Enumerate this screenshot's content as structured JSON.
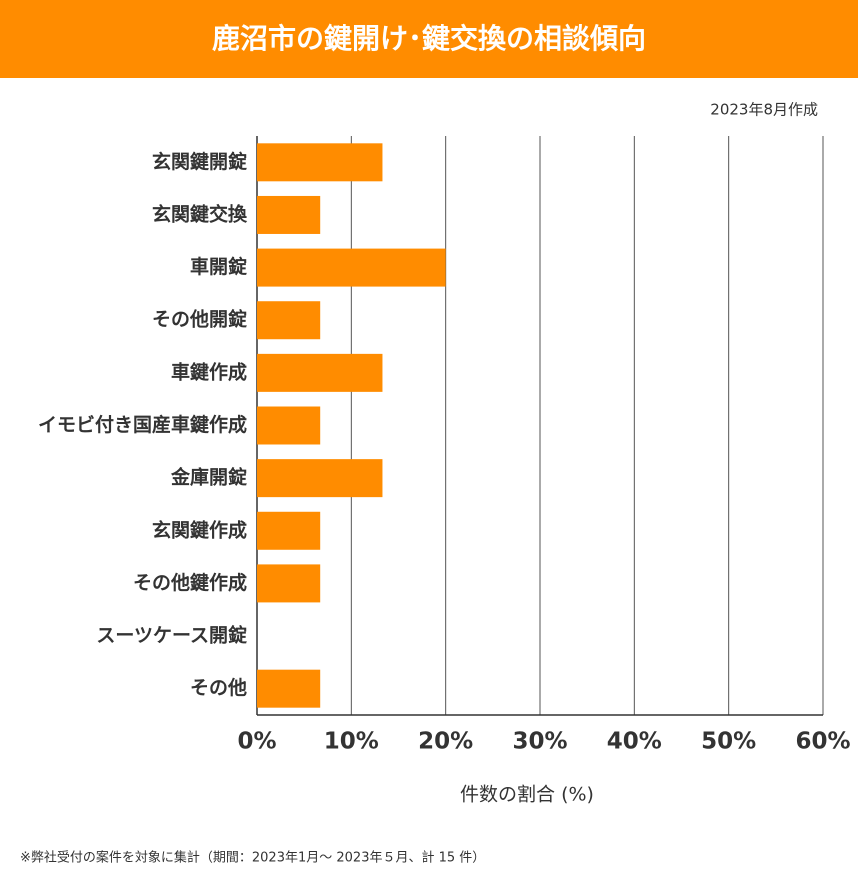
{
  "chart_data": {
    "type": "bar",
    "orientation": "horizontal",
    "title": "鹿沼市の鍵開け･鍵交換の相談傾向",
    "annotation": "2023年8月作成",
    "xlabel": "件数の割合 (%)",
    "footnote": "※弊社受付の案件を対象に集計（期間：2023年1月～ 2023年５月、計 15 件）",
    "categories": [
      "玄関鍵開錠",
      "玄関鍵交換",
      "車開錠",
      "その他開錠",
      "車鍵作成",
      "イモビ付き国産車鍵作成",
      "金庫開錠",
      "玄関鍵作成",
      "その他鍵作成",
      "スーツケース開錠",
      "その他"
    ],
    "values": [
      13.3,
      6.7,
      20,
      6.7,
      13.3,
      6.7,
      13.3,
      6.7,
      6.7,
      0,
      6.7
    ],
    "color": "#ff8c00",
    "xlim": [
      0,
      60
    ],
    "xticks": [
      {
        "value": 0,
        "label": "0%"
      },
      {
        "value": 10,
        "label": "10%"
      },
      {
        "value": 20,
        "label": "20%"
      },
      {
        "value": 30,
        "label": "30%"
      },
      {
        "value": 40,
        "label": "40%"
      },
      {
        "value": 50,
        "label": "50%"
      },
      {
        "value": 60,
        "label": "60%"
      }
    ],
    "grid": true
  }
}
